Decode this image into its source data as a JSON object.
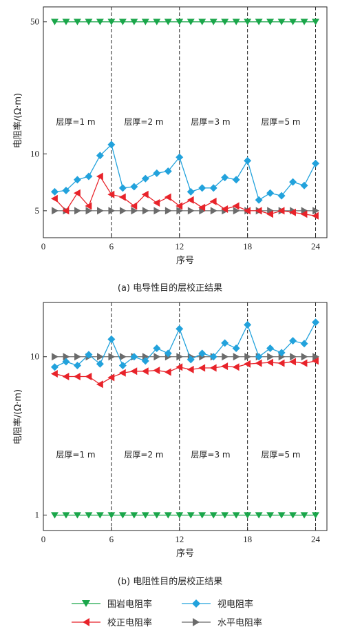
{
  "colors": {
    "surrounding": "#1aa64a",
    "apparent": "#22a2dc",
    "corrected": "#e8232a",
    "horizontal": "#6b6b6b"
  },
  "legend": {
    "surrounding": "围岩电阻率",
    "apparent": "视电阻率",
    "corrected": "校正电阻率",
    "horizontal": "水平电阻率"
  },
  "chart_data": [
    {
      "type": "line",
      "caption": "(a) 电导性目的层校正结果",
      "xlabel": "序号",
      "ylabel": "电阻率/(Ω·m)",
      "xlim": [
        0,
        25
      ],
      "ylim": [
        3.6,
        60
      ],
      "yscale": "log",
      "xticks": [
        0,
        6,
        12,
        18,
        24
      ],
      "yticks": [
        5,
        10,
        50
      ],
      "dividers": [
        6,
        12,
        18,
        24
      ],
      "annotations": [
        "层厚=1 m",
        "层厚=2 m",
        "层厚=3 m",
        "层厚=5 m"
      ],
      "x": [
        1,
        2,
        3,
        4,
        5,
        6,
        7,
        8,
        9,
        10,
        11,
        12,
        13,
        14,
        15,
        16,
        17,
        18,
        19,
        20,
        21,
        22,
        23,
        24
      ],
      "series": [
        {
          "key": "surrounding",
          "marker": "tri-down",
          "values": [
            50,
            50,
            50,
            50,
            50,
            50,
            50,
            50,
            50,
            50,
            50,
            50,
            50,
            50,
            50,
            50,
            50,
            50,
            50,
            50,
            50,
            50,
            50,
            50
          ]
        },
        {
          "key": "apparent",
          "marker": "diamond",
          "values": [
            6.3,
            6.4,
            7.3,
            7.6,
            9.8,
            11.2,
            6.6,
            6.7,
            7.4,
            7.9,
            8.1,
            9.6,
            6.3,
            6.6,
            6.6,
            7.5,
            7.3,
            9.2,
            5.7,
            6.2,
            6.0,
            7.1,
            6.8,
            8.9
          ]
        },
        {
          "key": "corrected",
          "marker": "tri-left",
          "values": [
            5.8,
            5.0,
            6.2,
            5.3,
            7.6,
            6.1,
            5.9,
            5.3,
            6.1,
            5.5,
            5.9,
            5.3,
            5.7,
            5.2,
            5.6,
            5.1,
            5.3,
            5.0,
            5.0,
            4.8,
            5.0,
            4.9,
            4.8,
            4.7
          ]
        },
        {
          "key": "horizontal",
          "marker": "tri-right",
          "values": [
            5,
            5,
            5,
            5,
            5,
            5,
            5,
            5,
            5,
            5,
            5,
            5,
            5,
            5,
            5,
            5,
            5,
            5,
            5,
            5,
            5,
            5,
            5,
            5
          ]
        }
      ]
    },
    {
      "type": "line",
      "caption": "(b) 电阻性目的层校正结果",
      "xlabel": "序号",
      "ylabel": "电阻率/(Ω·m)",
      "xlim": [
        0,
        25
      ],
      "ylim": [
        0.8,
        22
      ],
      "yscale": "log",
      "xticks": [
        0,
        6,
        12,
        18,
        24
      ],
      "yticks": [
        1,
        10
      ],
      "dividers": [
        6,
        12,
        18,
        24
      ],
      "annotations": [
        "层厚=1 m",
        "层厚=2 m",
        "层厚=3 m",
        "层厚=5 m"
      ],
      "x": [
        1,
        2,
        3,
        4,
        5,
        6,
        7,
        8,
        9,
        10,
        11,
        12,
        13,
        14,
        15,
        16,
        17,
        18,
        19,
        20,
        21,
        22,
        23,
        24
      ],
      "series": [
        {
          "key": "surrounding",
          "marker": "tri-down",
          "values": [
            1,
            1,
            1,
            1,
            1,
            1,
            1,
            1,
            1,
            1,
            1,
            1,
            1,
            1,
            1,
            1,
            1,
            1,
            1,
            1,
            1,
            1,
            1,
            1
          ]
        },
        {
          "key": "apparent",
          "marker": "diamond",
          "values": [
            8.6,
            9.3,
            8.8,
            10.3,
            9.0,
            12.9,
            8.8,
            10.0,
            9.4,
            11.3,
            10.5,
            15.0,
            9.6,
            10.5,
            10.0,
            12.2,
            11.3,
            15.9,
            10.0,
            11.3,
            10.6,
            12.6,
            12.1,
            16.5
          ]
        },
        {
          "key": "corrected",
          "marker": "tri-left",
          "values": [
            7.8,
            7.5,
            7.5,
            7.5,
            6.7,
            7.4,
            7.9,
            8.1,
            8.1,
            8.2,
            8.0,
            8.6,
            8.3,
            8.5,
            8.5,
            8.7,
            8.6,
            9.0,
            9.1,
            9.2,
            9.1,
            9.3,
            9.1,
            9.4
          ]
        },
        {
          "key": "horizontal",
          "marker": "tri-right",
          "values": [
            10,
            10,
            10,
            10,
            10,
            10,
            10,
            10,
            10,
            10,
            10,
            10,
            10,
            10,
            10,
            10,
            10,
            10,
            10,
            10,
            10,
            10,
            10,
            10
          ]
        }
      ]
    }
  ]
}
